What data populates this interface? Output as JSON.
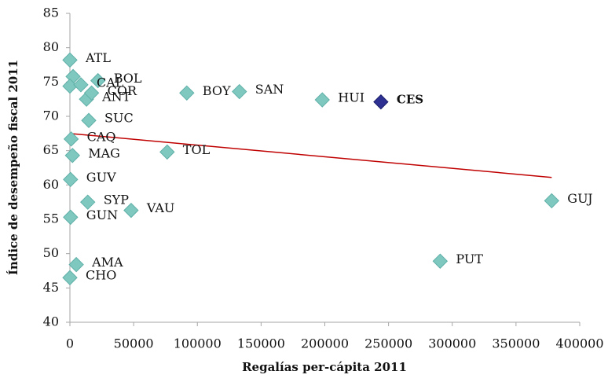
{
  "chart_data": {
    "type": "scatter",
    "xlabel": "Regalías per-cápita 2011",
    "ylabel": "Índice de desempeño fiscal 2011",
    "labels": [
      "ATL",
      null,
      "BOL",
      null,
      "CAL",
      "ANT",
      "COR",
      "BOY",
      "SAN",
      "HUI",
      "CES",
      "SUC",
      "CAQ",
      "TOL",
      "MAG",
      "GUV",
      "SYP",
      "VAU",
      "GUN",
      "GUJ",
      "PUT",
      "AMA",
      "CHO"
    ],
    "x": [
      0,
      2500,
      22000,
      0,
      8600,
      13000,
      17000,
      91700,
      133000,
      198000,
      244000,
      14800,
      1000,
      76300,
      2000,
      500,
      14000,
      48000,
      500,
      378000,
      290500,
      5000,
      0
    ],
    "values": [
      78.2,
      75.8,
      75.2,
      74.4,
      74.6,
      72.5,
      73.4,
      73.4,
      73.6,
      72.4,
      72.1,
      69.4,
      66.7,
      64.8,
      64.3,
      60.8,
      57.5,
      56.3,
      55.3,
      57.7,
      48.9,
      48.4,
      46.5
    ],
    "color": "#7fc8c0",
    "highlight": {
      "index": 10,
      "color": "#2e3192"
    },
    "trend": {
      "x": [
        0,
        378000
      ],
      "y": [
        67.5,
        61.1
      ],
      "color": "#c00000"
    },
    "xlim": [
      0,
      400000
    ],
    "xticks": [
      0,
      50000,
      100000,
      150000,
      200000,
      250000,
      300000,
      350000,
      400000
    ],
    "ylim": [
      40,
      85
    ],
    "yticks": [
      40,
      45,
      50,
      55,
      60,
      65,
      70,
      75,
      80,
      85
    ]
  }
}
